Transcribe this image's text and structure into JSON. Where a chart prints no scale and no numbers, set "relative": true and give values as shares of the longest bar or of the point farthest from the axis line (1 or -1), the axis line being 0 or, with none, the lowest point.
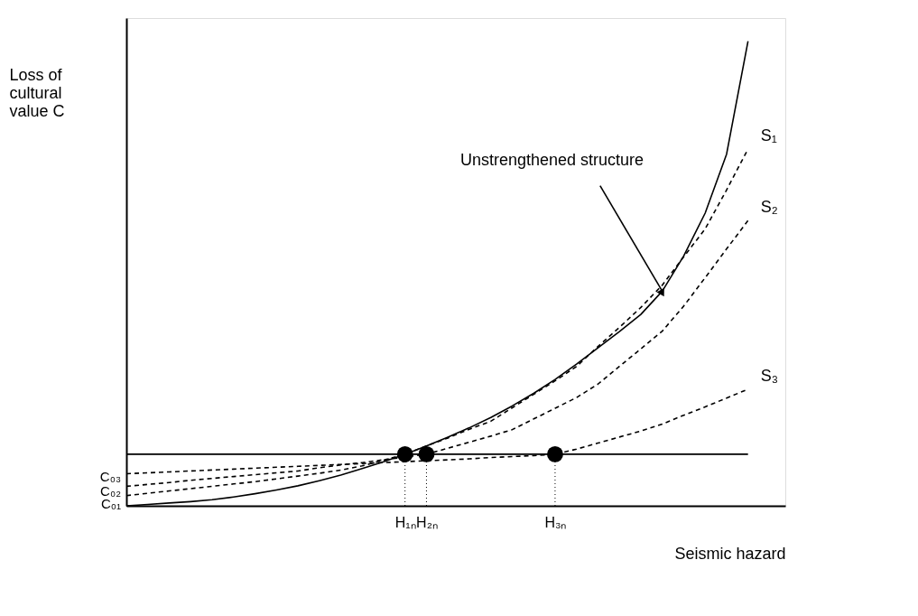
{
  "chart_data": {
    "type": "line",
    "relative": true,
    "xlabel": "Seismic hazard",
    "ylabel": "Loss of cultural value C",
    "categories": [
      null,
      null,
      null,
      null,
      null,
      null,
      null,
      null,
      null,
      null,
      null,
      null,
      null,
      "H₁ₙ",
      "H₂ₙ",
      null,
      null,
      null,
      null,
      null,
      "H₃ₙ",
      null,
      null,
      null,
      null,
      null,
      null,
      null,
      null,
      null
    ],
    "series": [
      {
        "color": "#000000",
        "line_style": "solid",
        "values": [
          0,
          0.003,
          0.006,
          0.009,
          0.013,
          0.019,
          0.026,
          0.034,
          0.043,
          0.054,
          0.066,
          0.08,
          0.095,
          0.111,
          0.129,
          0.148,
          0.168,
          0.19,
          0.215,
          0.242,
          0.272,
          0.305,
          0.34,
          0.375,
          0.412,
          0.462,
          0.538,
          0.63,
          0.757,
          1
        ]
      },
      {
        "name": "S₁",
        "color": "#000000",
        "line_style": "dashed",
        "values": [
          0.022,
          0.027,
          0.032,
          0.037,
          0.042,
          0.047,
          0.052,
          0.058,
          0.064,
          0.07,
          0.077,
          0.086,
          0.098,
          0.111,
          0.129,
          0.146,
          0.165,
          0.182,
          0.211,
          0.24,
          0.269,
          0.3,
          0.343,
          0.384,
          0.427,
          0.475,
          0.536,
          0.596,
          0.68,
          0.768
        ]
      },
      {
        "name": "S₂",
        "color": "#000000",
        "line_style": "dashed",
        "values": [
          0.042,
          0.046,
          0.05,
          0.055,
          0.059,
          0.063,
          0.067,
          0.071,
          0.075,
          0.082,
          0.088,
          0.093,
          0.099,
          0.105,
          0.111,
          0.124,
          0.137,
          0.15,
          0.164,
          0.187,
          0.21,
          0.233,
          0.262,
          0.3,
          0.338,
          0.376,
          0.43,
          0.491,
          0.553,
          0.614
        ]
      },
      {
        "name": "S₃",
        "color": "#000000",
        "line_style": "dashed",
        "values": [
          0.069,
          0.071,
          0.073,
          0.075,
          0.077,
          0.079,
          0.081,
          0.083,
          0.085,
          0.087,
          0.089,
          0.091,
          0.093,
          0.095,
          0.097,
          0.099,
          0.101,
          0.104,
          0.106,
          0.108,
          0.111,
          0.122,
          0.135,
          0.148,
          0.161,
          0.176,
          0.195,
          0.213,
          0.232,
          0.251
        ]
      },
      {
        "type": "scatter",
        "marker": "circle",
        "color": "#000000",
        "values": [
          null,
          null,
          null,
          null,
          null,
          null,
          null,
          null,
          null,
          null,
          null,
          null,
          null,
          0.111,
          0.111,
          null,
          null,
          null,
          null,
          null,
          0.111,
          null,
          null,
          null,
          null,
          null,
          null,
          null,
          null,
          null
        ]
      }
    ],
    "ref_lines": [
      {
        "axis": "y",
        "value": 0.111,
        "color": "#000000",
        "line_style": "solid"
      }
    ],
    "annotations": [
      "Unstrengthened structure",
      "C₀₁",
      "C₀₂",
      "C₀₃"
    ],
    "grid": false
  }
}
